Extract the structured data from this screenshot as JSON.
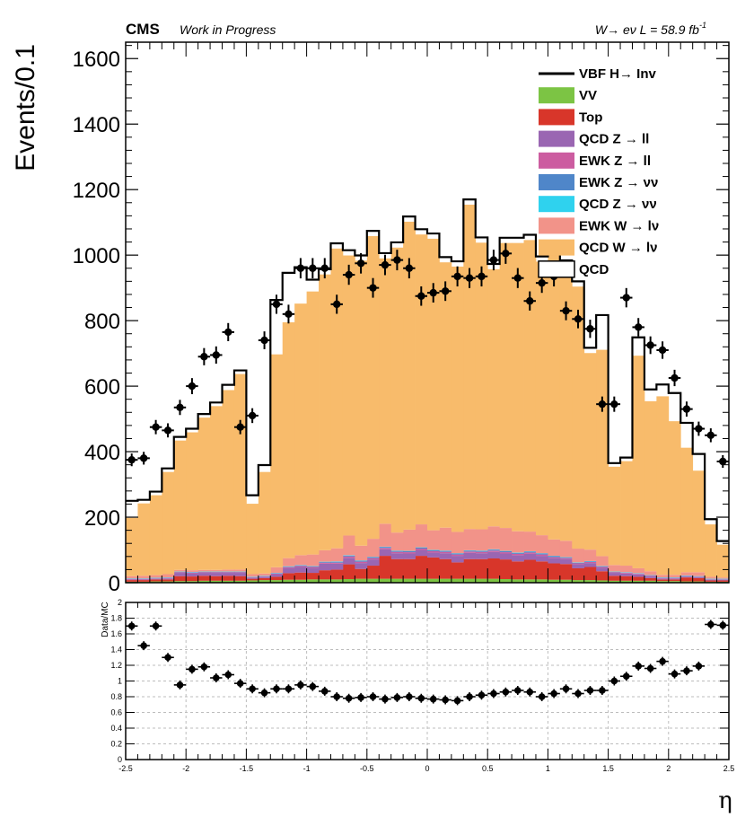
{
  "header": {
    "experiment": "CMS",
    "status": "Work in Progress",
    "channel_lumi": "W→ eν L = 58.9 fb",
    "lumi_exponent": "-1"
  },
  "colors": {
    "VV": "#7cc444",
    "Top": "#d8362a",
    "QCD_Z_ll": "#9a66b2",
    "EWK_Z_ll": "#cc5ca0",
    "EWK_Z_nunu": "#4f86c9",
    "QCD_Z_nunu": "#2fd2ee",
    "EWK_W_lnu": "#f29389",
    "QCD_W_lnu": "#f8bb6b",
    "QCD": "#ffffff",
    "VBF": "#000000",
    "data": "#000000"
  },
  "chart_data": [
    {
      "type": "area",
      "stacked": true,
      "xlim": [
        -2.5,
        2.5
      ],
      "ylim": [
        0,
        1650
      ],
      "ylabel": "Events/0.1",
      "yticks": [
        0,
        200,
        400,
        600,
        800,
        1000,
        1200,
        1400,
        1600
      ],
      "bin_width": 0.1,
      "x_bin_edges_start": -2.5,
      "legend_position": "top-right",
      "legend": [
        {
          "label": "VBF H→ Inv",
          "style": "line",
          "color_key": "VBF"
        },
        {
          "label": "VV",
          "style": "fill",
          "color_key": "VV"
        },
        {
          "label": "Top",
          "style": "fill",
          "color_key": "Top"
        },
        {
          "label": "QCD Z  → ll",
          "style": "fill",
          "color_key": "QCD_Z_ll"
        },
        {
          "label": "EWK Z  → ll",
          "style": "fill",
          "color_key": "EWK_Z_ll"
        },
        {
          "label": "EWK Z  →  νν",
          "style": "fill",
          "color_key": "EWK_Z_nunu"
        },
        {
          "label": "QCD Z  →  νν",
          "style": "fill",
          "color_key": "QCD_Z_nunu"
        },
        {
          "label": "EWK W  → lν",
          "style": "fill",
          "color_key": "EWK_W_lnu"
        },
        {
          "label": "QCD W  → lν",
          "style": "fill",
          "color_key": "QCD_W_lnu"
        },
        {
          "label": "QCD",
          "style": "box",
          "color_key": "QCD"
        }
      ],
      "stack_order": [
        "VV",
        "Top",
        "QCD_Z_ll",
        "EWK_Z_ll",
        "EWK_Z_nunu",
        "QCD_Z_nunu",
        "EWK_W_lnu",
        "QCD_W_lnu"
      ],
      "series": [
        {
          "name": "VV",
          "values": [
            3,
            3,
            4,
            4,
            5,
            5,
            6,
            6,
            6,
            6,
            7,
            8,
            8,
            9,
            9,
            10,
            10,
            10,
            11,
            12,
            12,
            12,
            12,
            12,
            12,
            12,
            12,
            12,
            12,
            12,
            12,
            11,
            10,
            10,
            10,
            9,
            9,
            8,
            8,
            7,
            6,
            6,
            6,
            6,
            5,
            5,
            4,
            4,
            3,
            3
          ]
        },
        {
          "name": "Top",
          "values": [
            5,
            5,
            6,
            6,
            15,
            14,
            15,
            14,
            15,
            14,
            5,
            6,
            10,
            20,
            22,
            20,
            28,
            30,
            45,
            30,
            40,
            70,
            60,
            60,
            70,
            65,
            60,
            50,
            60,
            60,
            62,
            60,
            55,
            60,
            55,
            50,
            48,
            36,
            40,
            28,
            15,
            14,
            12,
            8,
            5,
            5,
            12,
            10,
            4,
            4
          ]
        },
        {
          "name": "QCD Z  → ll",
          "values": [
            2,
            2,
            2,
            3,
            10,
            10,
            9,
            10,
            9,
            10,
            3,
            4,
            8,
            15,
            17,
            15,
            20,
            18,
            20,
            18,
            19,
            20,
            18,
            17,
            18,
            15,
            18,
            20,
            19,
            18,
            20,
            18,
            19,
            18,
            17,
            16,
            15,
            12,
            12,
            10,
            9,
            8,
            7,
            5,
            3,
            3,
            3,
            3,
            2,
            2
          ]
        },
        {
          "name": "EWK Z  → ll",
          "values": [
            1,
            1,
            1,
            1,
            2,
            2,
            2,
            2,
            2,
            2,
            1,
            1,
            2,
            3,
            3,
            3,
            3,
            3,
            4,
            4,
            4,
            4,
            4,
            4,
            4,
            4,
            4,
            4,
            4,
            4,
            4,
            4,
            4,
            4,
            4,
            3,
            3,
            3,
            3,
            3,
            2,
            2,
            2,
            2,
            1,
            1,
            1,
            1,
            1,
            1
          ]
        },
        {
          "name": "EWK Z  →  νν",
          "values": [
            1,
            1,
            1,
            1,
            1,
            1,
            1,
            1,
            1,
            1,
            1,
            1,
            1,
            2,
            2,
            2,
            2,
            3,
            3,
            3,
            3,
            3,
            3,
            3,
            3,
            3,
            3,
            3,
            3,
            3,
            3,
            3,
            3,
            3,
            3,
            3,
            2,
            2,
            2,
            2,
            1,
            1,
            1,
            1,
            1,
            1,
            1,
            1,
            1,
            1
          ]
        },
        {
          "name": "QCD Z  →  νν",
          "values": [
            1,
            1,
            1,
            1,
            1,
            1,
            1,
            1,
            1,
            1,
            1,
            1,
            1,
            1,
            1,
            1,
            1,
            1,
            1,
            1,
            1,
            1,
            1,
            1,
            1,
            1,
            1,
            1,
            1,
            1,
            1,
            1,
            1,
            1,
            1,
            1,
            1,
            1,
            1,
            1,
            1,
            1,
            1,
            1,
            1,
            1,
            1,
            1,
            1,
            1
          ]
        },
        {
          "name": "EWK W  → lν",
          "values": [
            7,
            8,
            8,
            10,
            5,
            5,
            5,
            5,
            6,
            6,
            8,
            7,
            17,
            25,
            30,
            35,
            35,
            40,
            60,
            45,
            55,
            70,
            55,
            65,
            70,
            60,
            70,
            65,
            65,
            65,
            70,
            70,
            65,
            60,
            55,
            50,
            50,
            42,
            35,
            30,
            20,
            20,
            15,
            12,
            8,
            8,
            10,
            12,
            6,
            4
          ]
        },
        {
          "name": "QCD W  → lν",
          "values": [
            178,
            221,
            244,
            312,
            395,
            421,
            465,
            500,
            548,
            597,
            215,
            310,
            650,
            720,
            768,
            803,
            842,
            915,
            855,
            870,
            924,
            810,
            870,
            940,
            885,
            890,
            810,
            810,
            990,
            875,
            785,
            870,
            880,
            890,
            835,
            890,
            840,
            800,
            600,
            630,
            300,
            319,
            649,
            519,
            545,
            469,
            380,
            310,
            160,
            100
          ]
        },
        {
          "name": "QCD",
          "values": [
            46,
            5,
            5,
            5,
            5,
            5,
            5,
            5,
            10,
            5,
            20,
            15,
            160,
            145,
            105,
            30,
            10,
            10,
            10,
            10,
            10,
            10,
            10,
            10,
            10,
            10,
            10,
            10,
            10,
            10,
            10,
            10,
            10,
            10,
            10,
            10,
            10,
            10,
            10,
            100,
            5,
            5,
            50,
            30,
            30,
            80,
            70,
            45,
            10,
            5
          ]
        },
        {
          "name": "VBF H→ Inv",
          "values": [
            6,
            6,
            6,
            6,
            6,
            6,
            6,
            6,
            6,
            6,
            6,
            6,
            6,
            6,
            6,
            6,
            6,
            6,
            6,
            6,
            6,
            6,
            6,
            6,
            6,
            6,
            6,
            6,
            6,
            6,
            6,
            6,
            6,
            6,
            6,
            6,
            6,
            6,
            6,
            6,
            6,
            6,
            6,
            6,
            6,
            6,
            6,
            6,
            6,
            6
          ]
        }
      ],
      "data_points": {
        "x": [
          -2.45,
          -2.35,
          -2.25,
          -2.15,
          -2.05,
          -1.95,
          -1.85,
          -1.75,
          -1.65,
          -1.55,
          -1.45,
          -1.35,
          -1.25,
          -1.15,
          -1.05,
          -0.95,
          -0.85,
          -0.75,
          -0.65,
          -0.55,
          -0.45,
          -0.35,
          -0.25,
          -0.15,
          -0.05,
          0.05,
          0.15,
          0.25,
          0.35,
          0.45,
          0.55,
          0.65,
          0.75,
          0.85,
          0.95,
          1.05,
          1.15,
          1.25,
          1.35,
          1.45,
          1.55,
          1.65,
          1.75,
          1.85,
          1.95,
          2.05,
          2.15,
          2.25,
          2.35,
          2.45
        ],
        "y": [
          375,
          380,
          475,
          465,
          535,
          600,
          690,
          695,
          765,
          475,
          510,
          740,
          850,
          820,
          960,
          960,
          960,
          850,
          940,
          975,
          900,
          970,
          985,
          960,
          875,
          885,
          890,
          935,
          930,
          935,
          985,
          1005,
          930,
          860,
          915,
          935,
          830,
          805,
          775,
          545,
          545,
          870,
          780,
          725,
          710,
          625,
          530,
          470,
          450,
          370
        ]
      }
    },
    {
      "type": "scatter",
      "ylabel": "Data/MC",
      "xlabel": "η",
      "xlim": [
        -2.5,
        2.5
      ],
      "ylim": [
        0,
        2
      ],
      "xticks": [
        -2.5,
        -2,
        -1.5,
        -1,
        -0.5,
        0,
        0.5,
        1,
        1.5,
        2,
        2.5
      ],
      "yticks": [
        0,
        0.2,
        0.4,
        0.6,
        0.8,
        1,
        1.2,
        1.4,
        1.6,
        1.8,
        2
      ],
      "grid": true,
      "x": [
        -2.45,
        -2.35,
        -2.25,
        -2.15,
        -2.05,
        -1.95,
        -1.85,
        -1.75,
        -1.65,
        -1.55,
        -1.45,
        -1.35,
        -1.25,
        -1.15,
        -1.05,
        -0.95,
        -0.85,
        -0.75,
        -0.65,
        -0.55,
        -0.45,
        -0.35,
        -0.25,
        -0.15,
        -0.05,
        0.05,
        0.15,
        0.25,
        0.35,
        0.45,
        0.55,
        0.65,
        0.75,
        0.85,
        0.95,
        1.05,
        1.15,
        1.25,
        1.35,
        1.45,
        1.55,
        1.65,
        1.75,
        1.85,
        1.95,
        2.05,
        2.15,
        2.25,
        2.35,
        2.45
      ],
      "y": [
        1.7,
        1.45,
        1.7,
        1.3,
        0.95,
        1.15,
        1.18,
        1.04,
        1.08,
        0.97,
        0.9,
        0.85,
        0.9,
        0.9,
        0.95,
        0.93,
        0.87,
        0.8,
        0.78,
        0.79,
        0.8,
        0.77,
        0.79,
        0.8,
        0.78,
        0.77,
        0.76,
        0.75,
        0.8,
        0.82,
        0.84,
        0.86,
        0.88,
        0.86,
        0.8,
        0.84,
        0.9,
        0.84,
        0.88,
        0.88,
        1.0,
        1.06,
        1.19,
        1.16,
        1.25,
        1.09,
        1.13,
        1.19,
        1.72,
        1.71
      ]
    }
  ]
}
